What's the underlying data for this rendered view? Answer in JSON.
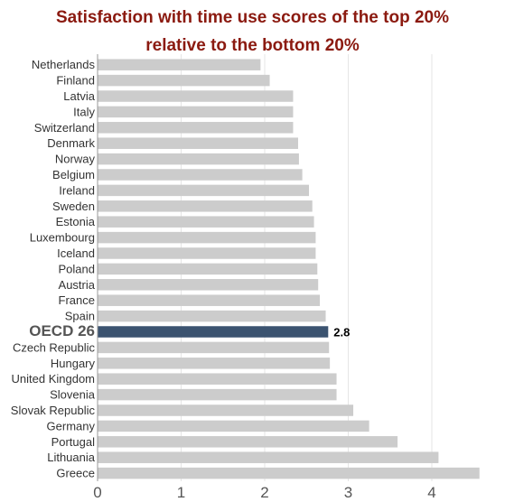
{
  "chart_data": {
    "type": "bar",
    "orientation": "horizontal",
    "title": "Satisfaction with time use scores of the top 20% relative to the bottom 20%",
    "title_lines": [
      "Satisfaction with time use scores of the top 20%",
      "relative to the bottom 20%"
    ],
    "categories": [
      "Netherlands",
      "Finland",
      "Latvia",
      "Italy",
      "Switzerland",
      "Denmark",
      "Norway",
      "Belgium",
      "Ireland",
      "Sweden",
      "Estonia",
      "Luxembourg",
      "Iceland",
      "Poland",
      "Austria",
      "France",
      "Spain",
      "OECD 26",
      "Czech Republic",
      "Hungary",
      "United Kingdom",
      "Slovenia",
      "Slovak Republic",
      "Germany",
      "Portugal",
      "Lithuania",
      "Greece"
    ],
    "values": [
      1.95,
      2.06,
      2.34,
      2.34,
      2.34,
      2.4,
      2.41,
      2.45,
      2.53,
      2.57,
      2.59,
      2.61,
      2.61,
      2.63,
      2.64,
      2.66,
      2.73,
      2.76,
      2.77,
      2.78,
      2.86,
      2.86,
      3.06,
      3.25,
      3.59,
      4.08,
      4.57
    ],
    "highlight": {
      "category": "OECD 26",
      "label": "2.8"
    },
    "xlim": [
      0,
      4.57
    ],
    "xticks": [
      "0",
      "1",
      "2",
      "3",
      "4"
    ],
    "grid": true,
    "colors": {
      "bar": "#cccccc",
      "highlight": "#3b5370",
      "title": "#8b1a10",
      "grid": "#e6e6e6"
    }
  }
}
